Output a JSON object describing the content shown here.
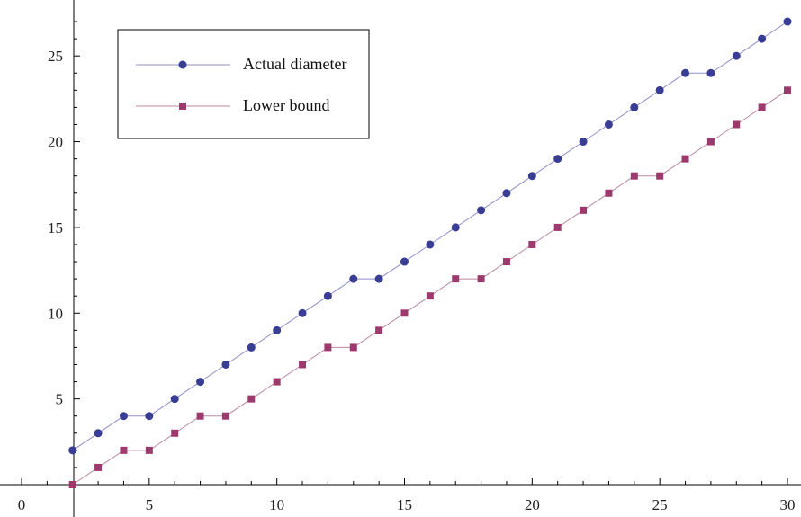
{
  "chart_data": {
    "type": "line",
    "title": "",
    "xlabel": "",
    "ylabel": "",
    "x": [
      2,
      3,
      4,
      5,
      6,
      7,
      8,
      9,
      10,
      11,
      12,
      13,
      14,
      15,
      16,
      17,
      18,
      19,
      20,
      21,
      22,
      23,
      24,
      25,
      26,
      27,
      28,
      29,
      30
    ],
    "xlim": [
      0,
      30
    ],
    "ylim": [
      0,
      27.5
    ],
    "xticks": [
      "0",
      "5",
      "10",
      "15",
      "20",
      "25",
      "30"
    ],
    "yticks": [
      "5",
      "10",
      "15",
      "20",
      "25"
    ],
    "grid": false,
    "legend_position": "top-left",
    "series": [
      {
        "name": "Actual diameter",
        "marker": "circle",
        "line_color": "#8f8fc8",
        "marker_color": "#3a3d94",
        "values": [
          2,
          3,
          4,
          4,
          5,
          6,
          7,
          8,
          9,
          10,
          11,
          12,
          12,
          13,
          14,
          15,
          16,
          17,
          18,
          19,
          20,
          21,
          22,
          23,
          24,
          24,
          25,
          26,
          27
        ]
      },
      {
        "name": "Lower bound",
        "marker": "square",
        "line_color": "#b88aa6",
        "marker_color": "#9c3a6e",
        "values": [
          0,
          1,
          2,
          2,
          3,
          4,
          4,
          5,
          6,
          7,
          8,
          8,
          9,
          10,
          11,
          12,
          12,
          13,
          14,
          15,
          16,
          17,
          18,
          18,
          19,
          20,
          21,
          22,
          23
        ]
      }
    ]
  }
}
